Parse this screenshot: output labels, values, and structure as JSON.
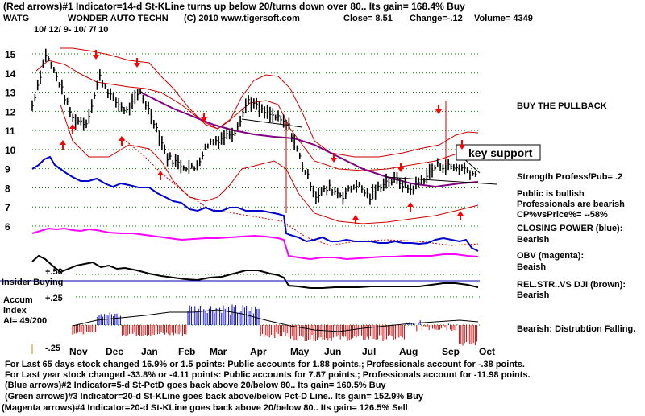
{
  "header": {
    "line1": "(Red arrows)#1 Indicator=14-d St-KLine turns up below 20/turns down over 80.. Its gain= 168.4% Buy",
    "ticker": "WATG",
    "company": "WONDER AUTO TECHN",
    "copyright": "(C) 2010 www.tigersoft.com",
    "close": "Close=  8.51",
    "change": "Change=-.12",
    "volume": "Volume= 4349",
    "date_range": "10/ 12/ 9- 10/ 7/ 10"
  },
  "annotations": {
    "buy_pullback": "BUY THE PULLBACK",
    "key_support": "key support",
    "strength": "Strength Profess/Pub= .2",
    "public_bullish": "Public is bullish",
    "professionals_bearish": "Professionals are bearish",
    "cp_vs_price": "CP%vsPrice%= --58%",
    "closing_power": "CLOSING POWER (blue):",
    "closing_power_state": "Bearish",
    "obv": "OBV (magenta):",
    "obv_state": "Beaish",
    "relstr": "REL.STR..VS DJI (brown):",
    "relstr_state": "Bearish",
    "distribution": "Bearish:  Distrubtion Falling.",
    "insider_buying": "Insider Buying",
    "accum_line1": "Accum",
    "accum_line2": "Index",
    "accum_line3": "AI= 49/200"
  },
  "footer": {
    "line1": "For Last 65 days stock changed  16.9% or  1.5 points:  Public accounts for  1.88 points.;  Professionals account for -.38 points.",
    "line2": "For Last year stock changed -33.8% or -4.11 points:  Public accounts for  7.87 points.;  Professionals account for -11.98 points.",
    "line3": "(Blue arrows)#2 Indicator=5-d St-PctD goes back above 20/below 80.. Its gain= 160.5% Buy",
    "line4": "(Green arrows)#3 Indicator=20-d St-KLine goes back above/below Pct-D Line.. Its gain= 152.9% Buy",
    "line5": "(Magenta arrows)#4 Indicator=20-d St-KLine goes back above 20/below 80.. Its gain= 126.5% Sell"
  },
  "colors": {
    "price": "#000000",
    "band": "#cc0000",
    "moving_avg": "#800080",
    "closing_power": "#0000cc",
    "obv": "#ff00ff",
    "relstr": "#000000",
    "accum_pos": "#0000cc",
    "accum_neg": "#cc0000",
    "grid": "#008000",
    "arrow": "#ff0000"
  },
  "chart_data": {
    "type": "line",
    "title": "WONDER AUTO TECHN",
    "y_ticks": [
      "15",
      "14",
      "13",
      "12",
      "11",
      "10",
      "9",
      "8",
      "7",
      "6"
    ],
    "ylim": [
      5.6,
      15.8
    ],
    "x_ticks": [
      "Nov",
      "Dec",
      "Jan",
      "Feb",
      "Mar",
      "Apr",
      "May",
      "Jun",
      "Jul",
      "Aug",
      "Sep",
      "Oct"
    ],
    "accum_ticks": [
      "+.50",
      "+.25",
      "-.25"
    ],
    "series": [
      {
        "name": "",
        "x": [
          "Oct",
          "Oct",
          "Nov",
          "Nov",
          "Nov",
          "Dec",
          "Dec",
          "Dec",
          "Jan",
          "Jan",
          "Jan",
          "Feb",
          "Feb",
          "Mar",
          "Mar",
          "Mar",
          "Apr",
          "Apr",
          "Apr",
          "Apr",
          "May",
          "May",
          "May",
          "Jun",
          "Jun",
          "Jul",
          "Jul",
          "Aug",
          "Aug",
          "Aug",
          "Sep",
          "Sep",
          "Sep",
          "Oct"
        ],
        "values": [
          12.3,
          15.0,
          13.5,
          11.6,
          11.4,
          13.8,
          12.6,
          12.0,
          13.0,
          11.5,
          9.6,
          9.2,
          9.0,
          10.3,
          10.6,
          11.0,
          12.6,
          12.0,
          11.7,
          11.2,
          9.2,
          7.6,
          8.0,
          7.6,
          8.2,
          7.5,
          8.3,
          8.4,
          7.9,
          8.5,
          9.2,
          9.1,
          9.0,
          8.6
        ]
      }
    ],
    "legend": [
      "Closing Power (blue)",
      "OBV (magenta)",
      "Rel.Str vs DJI (brown)"
    ],
    "grid": true
  }
}
